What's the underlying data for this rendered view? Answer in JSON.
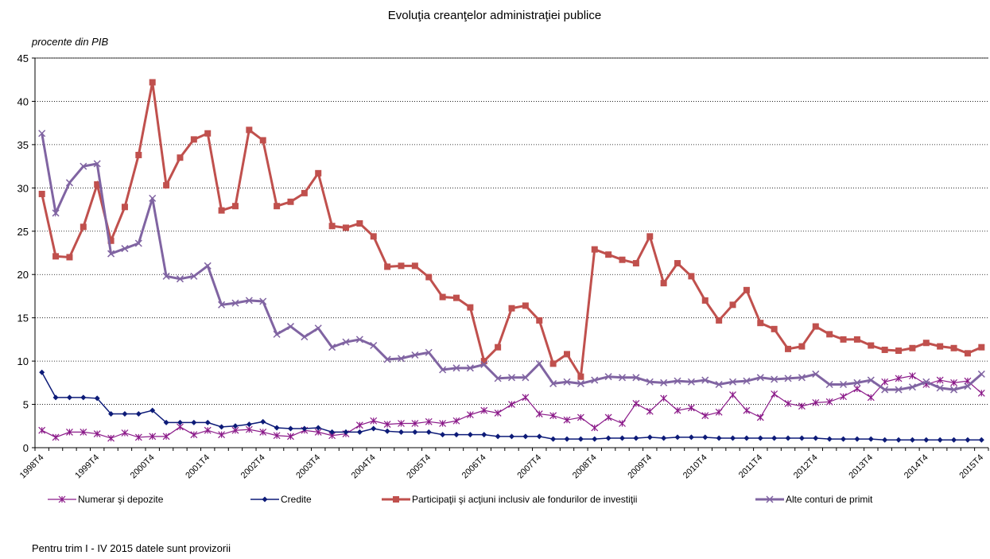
{
  "chart_data": {
    "type": "line",
    "title": "Evoluţia creanţelor administraţiei publice",
    "y_label": "procente din PIB",
    "footnote": "Pentru trim I - IV 2015 datele sunt provizorii",
    "categories": [
      "1998T4",
      null,
      null,
      null,
      "1999T4",
      null,
      null,
      null,
      "2000T4",
      null,
      null,
      null,
      "2001T4",
      null,
      null,
      null,
      "2002T4",
      null,
      null,
      null,
      "2003T4",
      null,
      null,
      null,
      "2004T4",
      null,
      null,
      null,
      "2005T4",
      null,
      null,
      null,
      "2006T4",
      null,
      null,
      null,
      "2007T4",
      null,
      null,
      null,
      "2008T4",
      null,
      null,
      null,
      "2009T4",
      null,
      null,
      null,
      "2010T4",
      null,
      null,
      null,
      "2011T4",
      null,
      null,
      null,
      "2012T4",
      null,
      null,
      null,
      "2013T4",
      null,
      null,
      null,
      "2014T4",
      null,
      null,
      null,
      "2015T4"
    ],
    "ylim": [
      0,
      45
    ],
    "yticks": [
      0,
      5,
      10,
      15,
      20,
      25,
      30,
      35,
      40,
      45
    ],
    "grid": true,
    "legend": "bottom",
    "series": [
      {
        "name": "Numerar şi depozite",
        "color": "#8b1a89",
        "marker": "star",
        "values": [
          2.0,
          1.2,
          1.8,
          1.8,
          1.6,
          1.1,
          1.7,
          1.2,
          1.3,
          1.3,
          2.4,
          1.5,
          2.0,
          1.5,
          2.0,
          2.1,
          1.8,
          1.4,
          1.3,
          2.0,
          1.8,
          1.4,
          1.6,
          2.6,
          3.1,
          2.7,
          2.8,
          2.8,
          3.0,
          2.8,
          3.1,
          3.8,
          4.3,
          4.0,
          5.0,
          5.8,
          3.9,
          3.7,
          3.2,
          3.5,
          2.3,
          3.5,
          2.8,
          5.1,
          4.2,
          5.7,
          4.3,
          4.6,
          3.7,
          4.1,
          6.1,
          4.3,
          3.5,
          6.2,
          5.1,
          4.8,
          5.2,
          5.3,
          5.9,
          6.8,
          5.8,
          7.6,
          8.0,
          8.3,
          7.3,
          7.8,
          7.5,
          7.7,
          6.3
        ]
      },
      {
        "name": "Credite",
        "color": "#0d1b78",
        "marker": "diamond",
        "values": [
          8.7,
          5.8,
          5.8,
          5.8,
          5.7,
          3.9,
          3.9,
          3.9,
          4.3,
          2.9,
          2.9,
          2.9,
          2.9,
          2.4,
          2.5,
          2.7,
          3.0,
          2.3,
          2.2,
          2.2,
          2.3,
          1.8,
          1.8,
          1.8,
          2.2,
          1.9,
          1.8,
          1.8,
          1.8,
          1.5,
          1.5,
          1.5,
          1.5,
          1.3,
          1.3,
          1.3,
          1.3,
          1.0,
          1.0,
          1.0,
          1.0,
          1.1,
          1.1,
          1.1,
          1.2,
          1.1,
          1.2,
          1.2,
          1.2,
          1.1,
          1.1,
          1.1,
          1.1,
          1.1,
          1.1,
          1.1,
          1.1,
          1.0,
          1.0,
          1.0,
          1.0,
          0.9,
          0.9,
          0.9,
          0.9,
          0.9,
          0.9,
          0.9,
          0.9
        ]
      },
      {
        "name": "Participaţii şi acţiuni inclusiv ale fondurilor de investiţii",
        "color": "#c0504d",
        "marker": "square",
        "values": [
          29.3,
          22.1,
          22.0,
          25.5,
          30.4,
          23.9,
          27.8,
          33.8,
          42.2,
          30.3,
          33.5,
          35.6,
          36.3,
          27.4,
          27.9,
          36.7,
          35.5,
          27.9,
          28.4,
          29.4,
          31.7,
          25.6,
          25.4,
          25.9,
          24.4,
          20.9,
          21.0,
          21.0,
          19.7,
          17.4,
          17.3,
          16.2,
          10.0,
          11.6,
          16.1,
          16.4,
          14.7,
          9.7,
          10.8,
          8.2,
          22.9,
          22.3,
          21.7,
          21.3,
          24.4,
          19.0,
          21.3,
          19.8,
          17.0,
          14.7,
          16.5,
          18.2,
          14.4,
          13.7,
          11.4,
          11.7,
          14.0,
          13.1,
          12.5,
          12.5,
          11.8,
          11.3,
          11.2,
          11.5,
          12.1,
          11.7,
          11.5,
          10.9,
          11.6
        ]
      },
      {
        "name": "Alte conturi de primit",
        "color": "#8064a2",
        "marker": "x",
        "values": [
          36.3,
          27.1,
          30.6,
          32.5,
          32.8,
          22.4,
          23.0,
          23.6,
          28.8,
          19.8,
          19.5,
          19.8,
          21.0,
          16.5,
          16.7,
          17.0,
          16.9,
          13.1,
          14.0,
          12.8,
          13.8,
          11.6,
          12.2,
          12.5,
          11.8,
          10.2,
          10.3,
          10.7,
          11.0,
          9.0,
          9.2,
          9.2,
          9.6,
          8.0,
          8.1,
          8.1,
          9.7,
          7.4,
          7.6,
          7.4,
          7.8,
          8.2,
          8.1,
          8.1,
          7.6,
          7.5,
          7.7,
          7.6,
          7.8,
          7.3,
          7.6,
          7.7,
          8.1,
          7.9,
          8.0,
          8.1,
          8.5,
          7.3,
          7.3,
          7.5,
          7.8,
          6.7,
          6.7,
          7.0,
          7.6,
          6.9,
          6.7,
          7.1,
          8.5
        ]
      }
    ]
  }
}
